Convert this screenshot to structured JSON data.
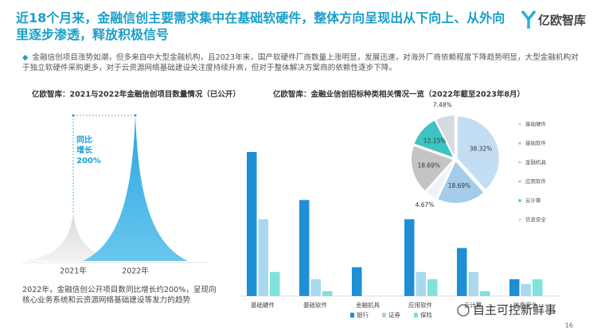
{
  "header": {
    "title": "近18个月来，金融信创主要需求集中在基础软硬件，整体方向呈现出从下向上、从外向里逐步渗透，释放积极信号",
    "logo": "亿欧智库"
  },
  "summary": "金融信创项目涨势如潮，但多来自中大型金融机构，且2023年来，国产软硬件厂商数量上涨明显，发展迅速，对海外厂商依赖程度下降趋势明显，大型金融机构对于独立软硬件采购更多，对于云资源网络基础建设关注度持续升高，但对于整体解决方案商的依赖性逐步下降。",
  "chart_data": [
    {
      "type": "mountain",
      "title": "亿欧智库：2021与2022年金融信创项目数量情况（已公开）",
      "categories": [
        "2021年",
        "2022年"
      ],
      "values": [
        1,
        3
      ],
      "colors": [
        "#e3e3e3",
        "#5cc0ea"
      ],
      "annotation": "同比增长200%",
      "note": "2022年，金融信创公开项目数同比增长约200%，呈现向核心业务系统和云资源网络基础建设等发力的趋势"
    },
    {
      "type": "bar",
      "title": "亿欧智库：金融业信创招标种类相关情况一览（2022年截至2023年8月）",
      "categories": [
        "基础硬件",
        "基础软件",
        "金融机具",
        "应用软件",
        "云计算",
        "信息安全"
      ],
      "series": [
        {
          "name": "银行",
          "color": "#1e8fd5",
          "values": [
            60,
            40,
            12,
            32,
            20,
            7
          ]
        },
        {
          "name": "证券",
          "color": "#a9d8ef",
          "values": [
            32,
            7,
            0,
            10,
            10,
            5
          ]
        },
        {
          "name": "保险",
          "color": "#7fe2dc",
          "values": [
            10,
            2,
            0,
            7,
            2,
            7
          ]
        }
      ]
    },
    {
      "type": "pie",
      "categories": [
        "基础硬件",
        "基础软件",
        "金融机具",
        "应用软件",
        "云计算",
        "信息安全"
      ],
      "values": [
        38.32,
        18.69,
        4.67,
        18.69,
        12.15,
        7.48
      ],
      "value_labels": [
        "38.32%",
        "18.69%",
        "4.67%",
        "18.69%",
        "12.15%",
        "7.48%"
      ],
      "colors": [
        "#c3def2",
        "#a3cdea",
        "#eef3f7",
        "#c4c4c4",
        "#3ec4c1",
        "#d6dbe2"
      ]
    }
  ],
  "footer": {
    "page": "16",
    "source": "自主可控新鲜事"
  }
}
